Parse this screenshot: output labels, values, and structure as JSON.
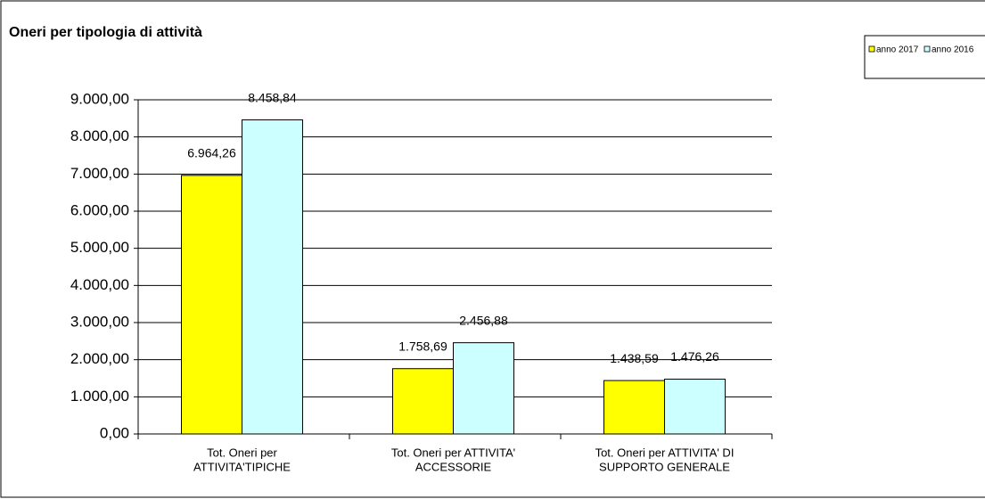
{
  "chart_data": {
    "type": "bar",
    "title": "Oneri per tipologia di attività",
    "categories": [
      [
        "Tot. Oneri per",
        "ATTIVITA'TIPICHE"
      ],
      [
        "Tot. Oneri per ATTIVITA'",
        "ACCESSORIE"
      ],
      [
        "Tot. Oneri per ATTIVITA' DI",
        "SUPPORTO GENERALE"
      ]
    ],
    "series": [
      {
        "name": "anno 2017",
        "color": "#ffff00",
        "values": [
          6964.26,
          1758.69,
          1438.59
        ],
        "value_labels": [
          "6.964,26",
          "1.758,69",
          "1.438,59"
        ]
      },
      {
        "name": "anno 2016",
        "color": "#ccffff",
        "values": [
          8458.84,
          2456.88,
          1476.26
        ],
        "value_labels": [
          "8.458,84",
          "2.456,88",
          "1.476,26"
        ]
      }
    ],
    "ylim": [
      0,
      9000
    ],
    "yticks": [
      {
        "value": 0,
        "label": "0,00"
      },
      {
        "value": 1000,
        "label": "1.000,00"
      },
      {
        "value": 2000,
        "label": "2.000,00"
      },
      {
        "value": 3000,
        "label": "3.000,00"
      },
      {
        "value": 4000,
        "label": "4.000,00"
      },
      {
        "value": 5000,
        "label": "5.000,00"
      },
      {
        "value": 6000,
        "label": "6.000,00"
      },
      {
        "value": 7000,
        "label": "7.000,00"
      },
      {
        "value": 8000,
        "label": "8.000,00"
      },
      {
        "value": 9000,
        "label": "9.000,00"
      }
    ],
    "grid": true
  }
}
